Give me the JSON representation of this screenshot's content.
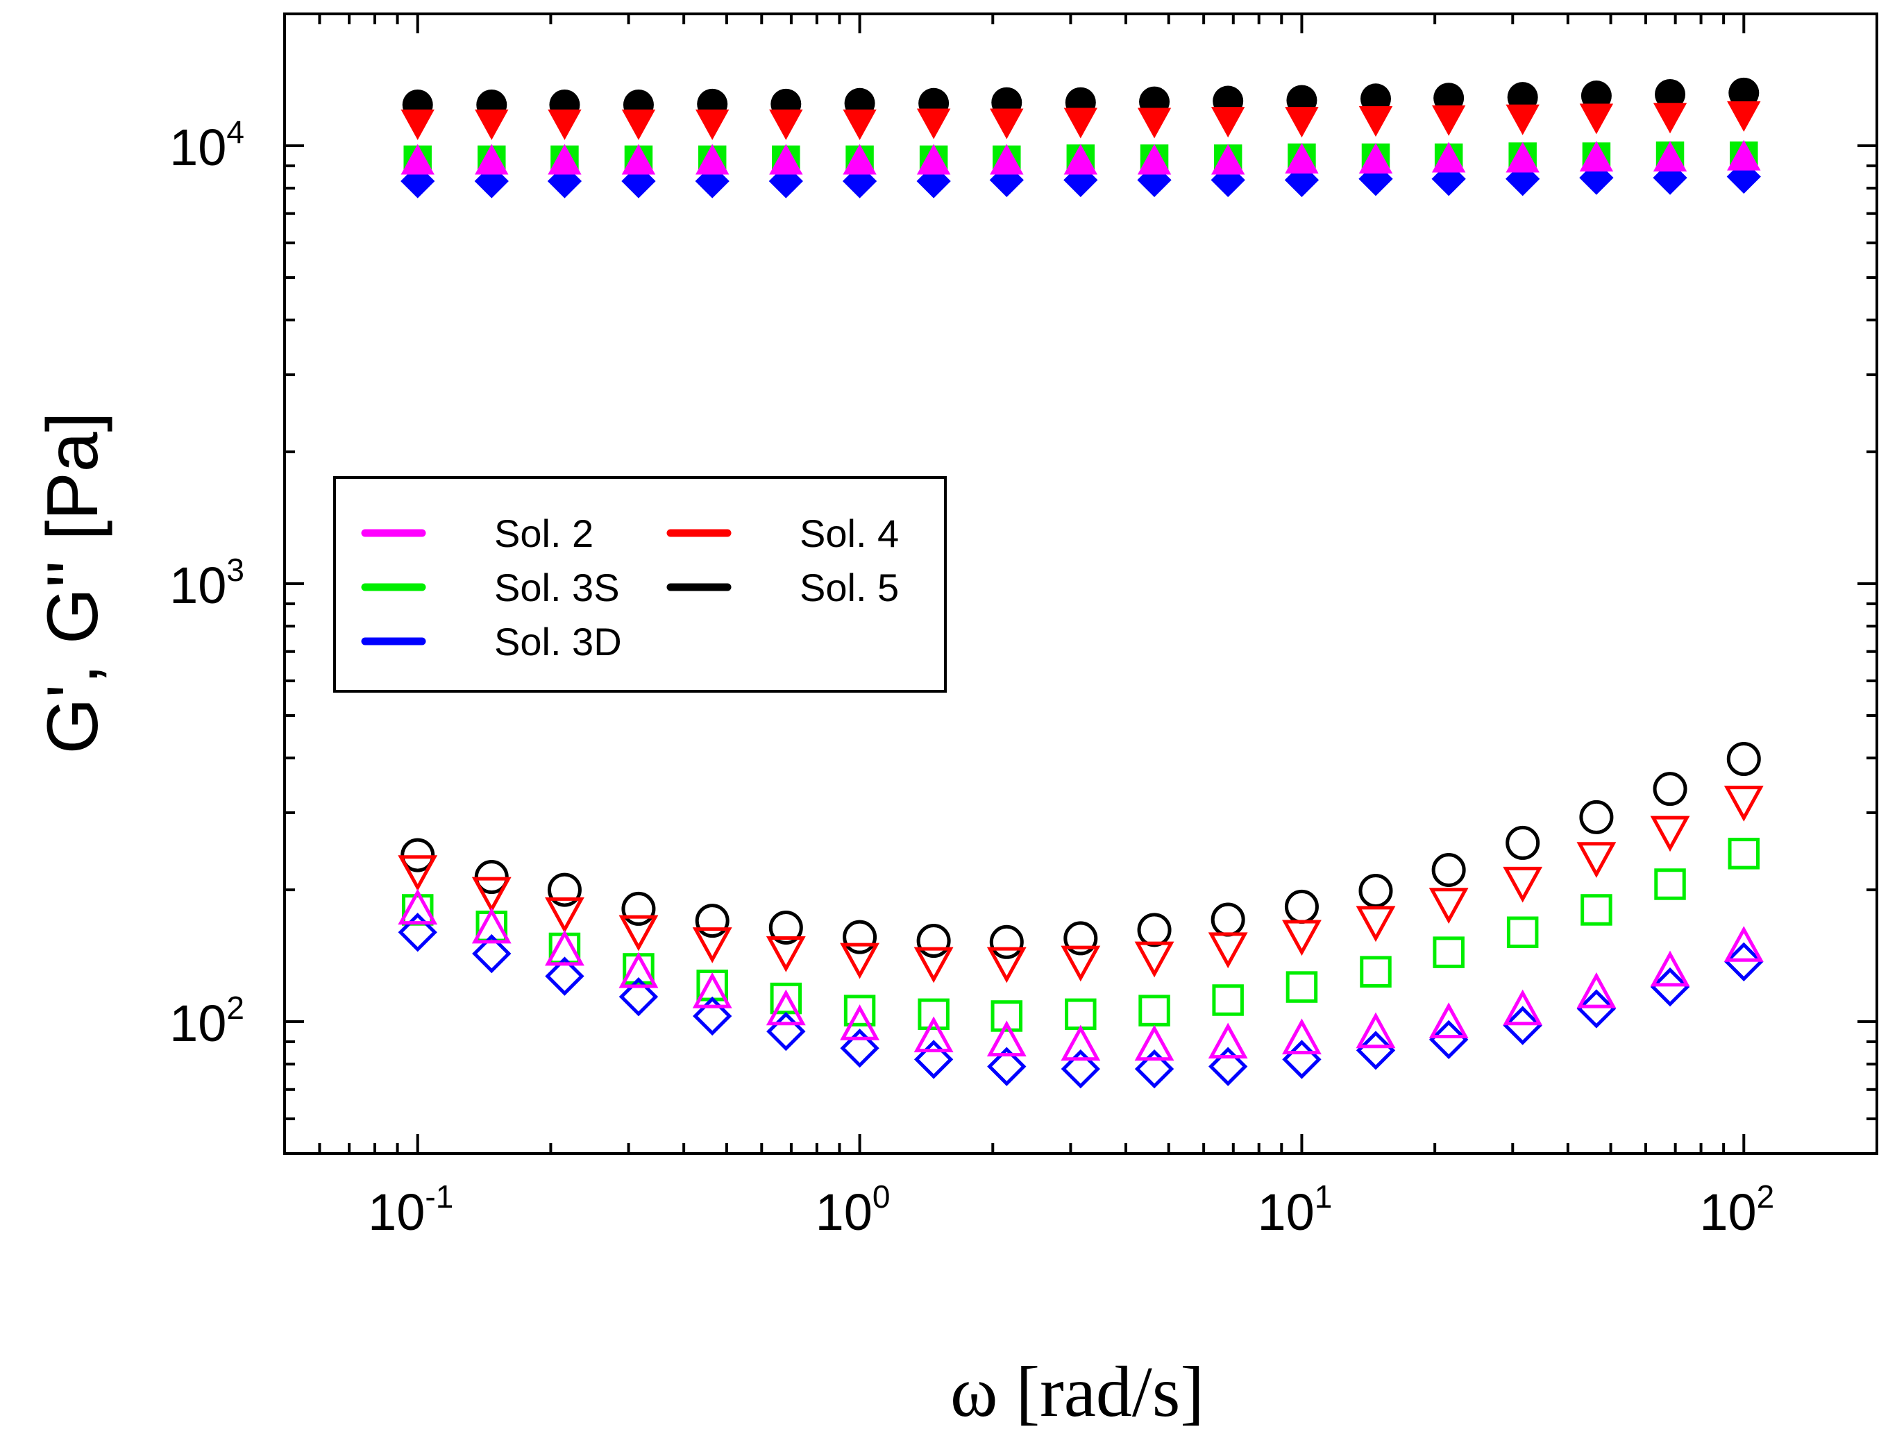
{
  "chart_data": {
    "type": "scatter",
    "title": "",
    "xlabel": "ω [rad/s]",
    "ylabel": "G', G'' [Pa]",
    "xscale": "log",
    "yscale": "log",
    "xlim": [
      0.05,
      200
    ],
    "ylim": [
      50,
      20000
    ],
    "grid": false,
    "legend_position": "center-left",
    "x_ticks": [
      {
        "value": 0.1,
        "base": "10",
        "exp": "-1"
      },
      {
        "value": 1,
        "base": "10",
        "exp": "0"
      },
      {
        "value": 10,
        "base": "10",
        "exp": "1"
      },
      {
        "value": 100,
        "base": "10",
        "exp": "2"
      }
    ],
    "y_ticks": [
      {
        "value": 100,
        "base": "10",
        "exp": "2"
      },
      {
        "value": 1000,
        "base": "10",
        "exp": "3"
      },
      {
        "value": 10000,
        "base": "10",
        "exp": "4"
      }
    ],
    "x": [
      0.1,
      0.147,
      0.215,
      0.316,
      0.464,
      0.681,
      1.0,
      1.47,
      2.15,
      3.16,
      4.64,
      6.81,
      10.0,
      14.7,
      21.5,
      31.6,
      46.4,
      68.1,
      100
    ],
    "series": [
      {
        "name": "Sol. 2",
        "color": "#ff00ff",
        "marker": "triangle-up",
        "z": 4,
        "g_prime": [
          9200,
          9200,
          9200,
          9200,
          9200,
          9200,
          9200,
          9200,
          9200,
          9200,
          9200,
          9200,
          9250,
          9250,
          9300,
          9300,
          9350,
          9350,
          9400
        ],
        "g_double_prime": [
          180,
          163,
          145,
          129,
          116,
          106,
          98,
          92,
          90,
          88,
          88,
          89,
          91,
          94,
          99,
          106,
          116,
          130,
          148
        ]
      },
      {
        "name": "Sol. 3S",
        "color": "#00ee00",
        "marker": "square",
        "z": 2,
        "g_prime": [
          9300,
          9300,
          9300,
          9300,
          9300,
          9300,
          9300,
          9300,
          9300,
          9350,
          9350,
          9350,
          9400,
          9400,
          9400,
          9450,
          9450,
          9500,
          9500
        ],
        "g_double_prime": [
          180,
          165,
          147,
          132,
          121,
          113,
          106,
          104,
          103,
          104,
          106,
          112,
          120,
          130,
          144,
          160,
          180,
          206,
          242
        ]
      },
      {
        "name": "Sol. 3D",
        "color": "#0000ff",
        "marker": "diamond",
        "z": 3,
        "g_prime": [
          8300,
          8300,
          8300,
          8300,
          8300,
          8300,
          8300,
          8300,
          8350,
          8350,
          8350,
          8350,
          8350,
          8400,
          8400,
          8400,
          8450,
          8450,
          8500
        ],
        "g_double_prime": [
          160,
          143,
          127,
          114,
          103,
          95,
          87,
          82,
          79,
          78,
          78,
          79,
          82,
          86,
          91,
          98,
          107,
          120,
          137
        ]
      },
      {
        "name": "Sol. 4",
        "color": "#ff0000",
        "marker": "triangle-down",
        "z": 1,
        "g_prime": [
          11300,
          11300,
          11300,
          11300,
          11300,
          11300,
          11300,
          11350,
          11350,
          11400,
          11400,
          11450,
          11450,
          11500,
          11550,
          11600,
          11650,
          11700,
          11800
        ],
        "g_double_prime": [
          222,
          198,
          178,
          162,
          152,
          145,
          140,
          137,
          137,
          138,
          141,
          148,
          158,
          170,
          187,
          209,
          238,
          273,
          320
        ]
      },
      {
        "name": "Sol. 5",
        "color": "#000000",
        "marker": "circle",
        "z": 0,
        "g_prime": [
          12400,
          12400,
          12400,
          12400,
          12450,
          12450,
          12500,
          12500,
          12550,
          12550,
          12600,
          12650,
          12700,
          12800,
          12850,
          12900,
          13000,
          13100,
          13200
        ],
        "g_double_prime": [
          240,
          214,
          200,
          181,
          170,
          164,
          156,
          153,
          152,
          155,
          162,
          171,
          183,
          199,
          222,
          256,
          293,
          340,
          398
        ]
      }
    ],
    "legend": {
      "columns": [
        [
          "Sol. 2",
          "Sol. 3S",
          "Sol. 3D"
        ],
        [
          "Sol. 4",
          "Sol. 5"
        ]
      ]
    }
  }
}
